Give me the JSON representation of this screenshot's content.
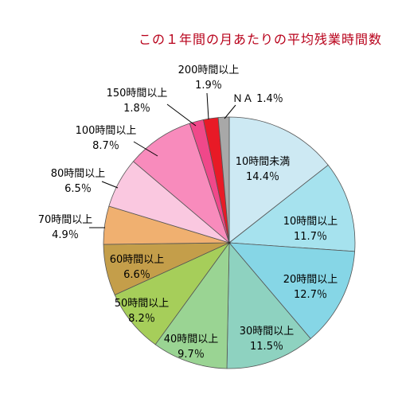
{
  "chart_data": {
    "type": "pie",
    "title": "この１年間の月あたりの平均残業時間数",
    "slices": [
      {
        "label": "10時間未満",
        "value_label": "14.4％",
        "value": 14.4,
        "color": "#cde9f3"
      },
      {
        "label": "10時間以上",
        "value_label": "11.7％",
        "value": 11.7,
        "color": "#a6e2ee"
      },
      {
        "label": "20時間以上",
        "value_label": "12.7％",
        "value": 12.7,
        "color": "#86d6e6"
      },
      {
        "label": "30時間以上",
        "value_label": "11.5％",
        "value": 11.5,
        "color": "#8ed2c0"
      },
      {
        "label": "40時間以上",
        "value_label": "9.7％",
        "value": 9.7,
        "color": "#9ad493"
      },
      {
        "label": "50時間以上",
        "value_label": "8.2％",
        "value": 8.2,
        "color": "#a6ce5a"
      },
      {
        "label": "60時間以上",
        "value_label": "6.6％",
        "value": 6.6,
        "color": "#c49e4a"
      },
      {
        "label": "70時間以上",
        "value_label": "4.9％",
        "value": 4.9,
        "color": "#f0b070"
      },
      {
        "label": "80時間以上",
        "value_label": "6.5％",
        "value": 6.5,
        "color": "#fac8e0"
      },
      {
        "label": "100時間以上",
        "value_label": "8.7％",
        "value": 8.7,
        "color": "#f88bbc"
      },
      {
        "label": "150時間以上",
        "value_label": "1.8％",
        "value": 1.8,
        "color": "#f0488a"
      },
      {
        "label": "200時間以上",
        "value_label": "1.9％",
        "value": 1.9,
        "color": "#e81a26"
      },
      {
        "label": "ＮＡ",
        "value_label": "1.4％",
        "value": 1.4,
        "color": "#a8a8a8"
      }
    ]
  }
}
